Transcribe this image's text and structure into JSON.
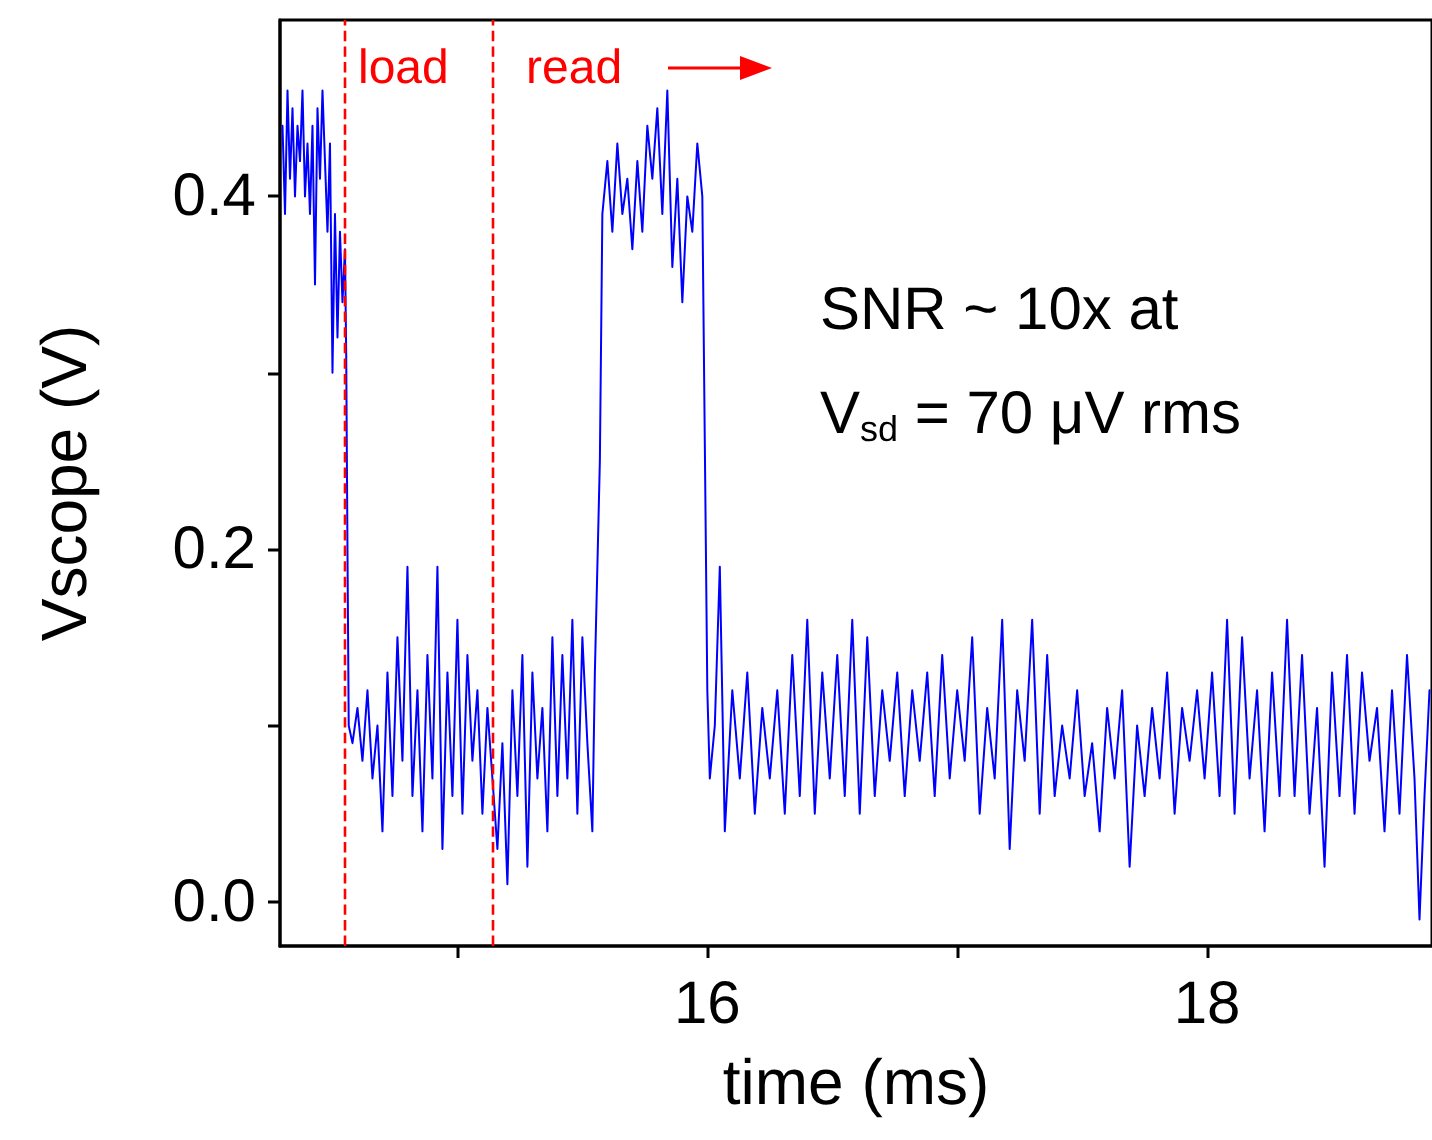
{
  "chart_data": {
    "type": "line",
    "xlabel": "time (ms)",
    "ylabel": "Vscope (V)",
    "xlim": [
      14.29,
      18.9
    ],
    "ylim": [
      -0.025,
      0.5
    ],
    "xticks": [
      {
        "value": 15,
        "label": null
      },
      16,
      {
        "value": 17,
        "label": null
      },
      18
    ],
    "yticks": [
      {
        "value": 0,
        "label": "0.0"
      },
      {
        "value": 0.1,
        "label": null
      },
      {
        "value": 0.2,
        "label": "0.2"
      },
      {
        "value": 0.3,
        "label": null
      },
      {
        "value": 0.4,
        "label": "0.4"
      }
    ],
    "grid": false,
    "marker": "none",
    "line_style": "solid",
    "ref_lines": [
      {
        "axis": "x",
        "value": 14.55,
        "label": null,
        "color": "#ff0000",
        "line_style": "dashed"
      },
      {
        "axis": "x",
        "value": 15.14,
        "label": null,
        "color": "#ff0000",
        "line_style": "dashed"
      }
    ],
    "annotations": [
      "load",
      "read",
      "SNR ~ 10x at",
      "V$_{sd}$ = 70 μV rms"
    ],
    "series": [
      {
        "color": "#0000ff",
        "x": [
          14.3,
          14.31,
          14.32,
          14.33,
          14.34,
          14.35,
          14.36,
          14.37,
          14.38,
          14.39,
          14.4,
          14.41,
          14.42,
          14.43,
          14.44,
          14.45,
          14.46,
          14.47,
          14.48,
          14.49,
          14.5,
          14.51,
          14.52,
          14.53,
          14.54,
          14.55,
          14.555,
          14.56,
          14.565,
          14.58,
          14.6,
          14.62,
          14.64,
          14.66,
          14.68,
          14.7,
          14.72,
          14.74,
          14.76,
          14.78,
          14.8,
          14.82,
          14.84,
          14.86,
          14.88,
          14.9,
          14.92,
          14.94,
          14.96,
          14.98,
          15.0,
          15.02,
          15.04,
          15.06,
          15.08,
          15.1,
          15.12,
          15.14,
          15.16,
          15.18,
          15.2,
          15.22,
          15.24,
          15.26,
          15.28,
          15.3,
          15.32,
          15.34,
          15.36,
          15.38,
          15.4,
          15.42,
          15.44,
          15.46,
          15.48,
          15.5,
          15.52,
          15.54,
          15.55,
          15.57,
          15.58,
          15.6,
          15.62,
          15.64,
          15.66,
          15.68,
          15.7,
          15.72,
          15.74,
          15.76,
          15.78,
          15.8,
          15.82,
          15.84,
          15.86,
          15.88,
          15.9,
          15.92,
          15.94,
          15.96,
          15.98,
          15.99,
          16.0,
          16.01,
          16.03,
          16.05,
          16.07,
          16.1,
          16.13,
          16.16,
          16.19,
          16.22,
          16.25,
          16.28,
          16.31,
          16.34,
          16.37,
          16.4,
          16.43,
          16.46,
          16.49,
          16.52,
          16.55,
          16.58,
          16.61,
          16.64,
          16.67,
          16.7,
          16.73,
          16.76,
          16.79,
          16.82,
          16.85,
          16.88,
          16.91,
          16.94,
          16.97,
          17.0,
          17.03,
          17.06,
          17.09,
          17.12,
          17.15,
          17.18,
          17.21,
          17.24,
          17.27,
          17.3,
          17.33,
          17.36,
          17.39,
          17.42,
          17.45,
          17.48,
          17.51,
          17.54,
          17.57,
          17.6,
          17.63,
          17.66,
          17.69,
          17.72,
          17.75,
          17.78,
          17.81,
          17.84,
          17.87,
          17.9,
          17.93,
          17.96,
          17.99,
          18.02,
          18.05,
          18.08,
          18.11,
          18.14,
          18.17,
          18.2,
          18.23,
          18.26,
          18.29,
          18.32,
          18.35,
          18.38,
          18.41,
          18.44,
          18.47,
          18.5,
          18.53,
          18.56,
          18.59,
          18.62,
          18.65,
          18.68,
          18.71,
          18.74,
          18.77,
          18.8,
          18.83,
          18.85,
          18.87,
          18.89
        ],
        "values": [
          0.44,
          0.39,
          0.46,
          0.41,
          0.45,
          0.4,
          0.44,
          0.42,
          0.46,
          0.4,
          0.43,
          0.39,
          0.44,
          0.35,
          0.45,
          0.41,
          0.46,
          0.42,
          0.38,
          0.43,
          0.3,
          0.39,
          0.32,
          0.38,
          0.34,
          0.37,
          0.31,
          0.2,
          0.1,
          0.09,
          0.11,
          0.08,
          0.12,
          0.07,
          0.1,
          0.04,
          0.13,
          0.06,
          0.15,
          0.08,
          0.19,
          0.06,
          0.12,
          0.04,
          0.14,
          0.07,
          0.19,
          0.03,
          0.13,
          0.06,
          0.16,
          0.05,
          0.14,
          0.08,
          0.12,
          0.05,
          0.11,
          0.07,
          0.03,
          0.09,
          0.01,
          0.12,
          0.06,
          0.14,
          0.02,
          0.13,
          0.07,
          0.11,
          0.04,
          0.15,
          0.06,
          0.14,
          0.07,
          0.16,
          0.05,
          0.15,
          0.09,
          0.04,
          0.13,
          0.25,
          0.39,
          0.42,
          0.38,
          0.43,
          0.39,
          0.41,
          0.37,
          0.42,
          0.38,
          0.44,
          0.41,
          0.45,
          0.39,
          0.46,
          0.36,
          0.41,
          0.34,
          0.4,
          0.38,
          0.43,
          0.4,
          0.26,
          0.12,
          0.07,
          0.1,
          0.19,
          0.04,
          0.12,
          0.07,
          0.13,
          0.05,
          0.11,
          0.07,
          0.12,
          0.05,
          0.14,
          0.06,
          0.16,
          0.05,
          0.13,
          0.07,
          0.14,
          0.06,
          0.16,
          0.05,
          0.15,
          0.06,
          0.12,
          0.08,
          0.13,
          0.06,
          0.12,
          0.08,
          0.13,
          0.06,
          0.14,
          0.07,
          0.12,
          0.08,
          0.15,
          0.05,
          0.11,
          0.07,
          0.16,
          0.03,
          0.12,
          0.08,
          0.16,
          0.05,
          0.14,
          0.06,
          0.1,
          0.07,
          0.12,
          0.06,
          0.09,
          0.04,
          0.11,
          0.07,
          0.12,
          0.02,
          0.1,
          0.06,
          0.11,
          0.07,
          0.13,
          0.05,
          0.11,
          0.08,
          0.12,
          0.07,
          0.13,
          0.06,
          0.16,
          0.05,
          0.15,
          0.07,
          0.12,
          0.04,
          0.13,
          0.06,
          0.16,
          0.06,
          0.14,
          0.05,
          0.11,
          0.02,
          0.13,
          0.06,
          0.14,
          0.05,
          0.13,
          0.08,
          0.11,
          0.04,
          0.12,
          0.05,
          0.14,
          0.07,
          -0.01,
          0.06,
          0.12
        ]
      }
    ]
  }
}
